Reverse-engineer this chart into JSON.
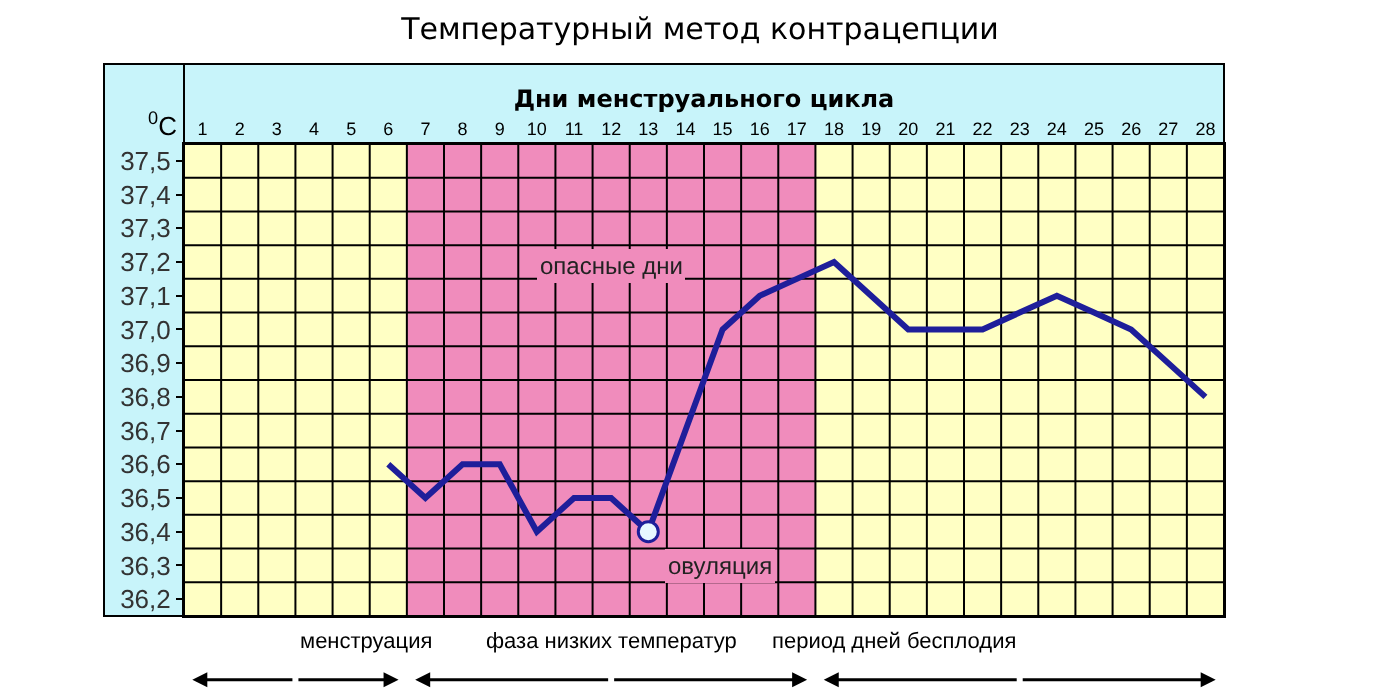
{
  "chart_data": {
    "type": "line",
    "title": "Температурный метод контрацепции",
    "xlabel": "Дни менструального цикла",
    "ylabel": "$^{0}$C",
    "x": [
      6,
      7,
      8,
      9,
      10,
      11,
      12,
      13,
      14,
      15,
      16,
      17,
      18,
      19,
      20,
      21,
      22,
      23,
      24,
      25,
      26,
      27,
      28
    ],
    "series": [
      {
        "color": "#1e1e9a",
        "marker": "none",
        "values": [
          36.6,
          36.5,
          36.6,
          36.6,
          36.4,
          36.5,
          36.5,
          36.4,
          36.7,
          37.0,
          37.1,
          37.15,
          37.2,
          37.1,
          37.0,
          37.0,
          37.0,
          37.05,
          37.1,
          37.05,
          37.0,
          36.9,
          36.8
        ]
      },
      {
        "type": "scatter",
        "marker": "circle",
        "color": "#e8f8ff",
        "x": [
          13
        ],
        "values": [
          36.4
        ]
      }
    ],
    "xlim": [
      0.5,
      28.5
    ],
    "xticks": [
      1,
      2,
      3,
      4,
      5,
      6,
      7,
      8,
      9,
      10,
      11,
      12,
      13,
      14,
      15,
      16,
      17,
      18,
      19,
      20,
      21,
      22,
      23,
      24,
      25,
      26,
      27,
      28
    ],
    "ylim": [
      36.15,
      37.55
    ],
    "yticks": [
      {
        "value": 36.2,
        "label": "36,2"
      },
      {
        "value": 36.3,
        "label": "36,3"
      },
      {
        "value": 36.4,
        "label": "36,4"
      },
      {
        "value": 36.5,
        "label": "36,5"
      },
      {
        "value": 36.6,
        "label": "36,6"
      },
      {
        "value": 36.7,
        "label": "36,7"
      },
      {
        "value": 36.8,
        "label": "36,8"
      },
      {
        "value": 36.9,
        "label": "36,9"
      },
      {
        "value": 37.0,
        "label": "37,0"
      },
      {
        "value": 37.1,
        "label": "37,1"
      },
      {
        "value": 37.2,
        "label": "37,2"
      },
      {
        "value": 37.3,
        "label": "37,3"
      },
      {
        "value": 37.4,
        "label": "37,4"
      },
      {
        "value": 37.5,
        "label": "37,5"
      }
    ],
    "bands": [
      {
        "axis": "x",
        "from": 6.5,
        "to": 17.5,
        "label": "опасные дни",
        "color": "#f08cbc"
      }
    ],
    "annotations": [
      {
        "text": "овуляция",
        "x": 13,
        "y": 36.4
      },
      "менструация",
      "фаза низких температур",
      "период дней бесплодия"
    ],
    "grid": true,
    "line_style": "solid"
  }
}
